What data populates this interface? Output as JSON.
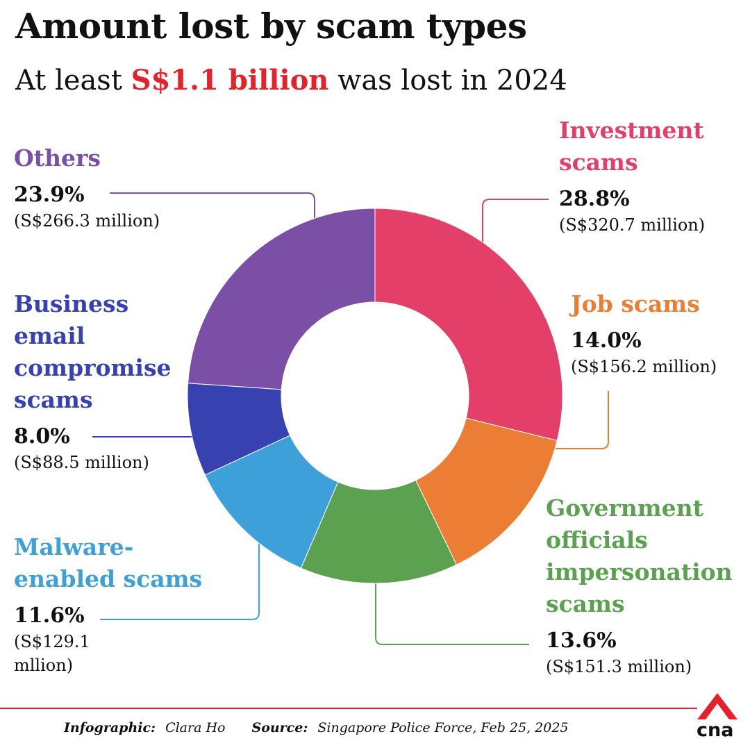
{
  "title": "Amount lost by scam types",
  "subtitle": {
    "prefix": "At least ",
    "highlight": "S$1.1 billion",
    "suffix": " was lost in 2024"
  },
  "colors": {
    "highlight": "#e4222b",
    "investment": "#e43f69",
    "job": "#ec7d35",
    "government": "#5ba150",
    "malware": "#3ea0d9",
    "business_email": "#3741b0",
    "others": "#7a4fa5"
  },
  "chart_data": {
    "type": "pie",
    "variant": "donut",
    "title": "Amount lost by scam types",
    "subtitle": "At least S$1.1 billion was lost in 2024",
    "start_angle": "12 o'clock, clockwise",
    "slices": [
      {
        "key": "investment",
        "label": "Investment scams",
        "percent": 28.8,
        "amount": "(S$320.7 million)",
        "amount_million": 320.7,
        "color": "#e43f69"
      },
      {
        "key": "job",
        "label": "Job scams",
        "percent": 14.0,
        "amount": "(S$156.2 million)",
        "amount_million": 156.2,
        "color": "#ec7d35"
      },
      {
        "key": "government",
        "label": "Government officials impersonation scams",
        "percent": 13.6,
        "amount": "(S$151.3 million)",
        "amount_million": 151.3,
        "color": "#5ba150"
      },
      {
        "key": "malware",
        "label": "Malware-enabled scams",
        "percent": 11.6,
        "amount": "(S$129.1 mllion)",
        "amount_million": 129.1,
        "color": "#3ea0d9"
      },
      {
        "key": "business_email",
        "label": "Business email compromise scams",
        "percent": 8.0,
        "amount": "(S$88.5 million)",
        "amount_million": 88.5,
        "color": "#3741b0"
      },
      {
        "key": "others",
        "label": "Others",
        "percent": 23.9,
        "amount": "(S$266.3 million)",
        "amount_million": 266.3,
        "color": "#7a4fa5"
      }
    ]
  },
  "labels": {
    "investment": {
      "cat": [
        "Investment",
        "scams"
      ],
      "pct": "28.8%",
      "amt": [
        "(S$320.7 million)"
      ]
    },
    "job": {
      "cat": [
        "Job scams"
      ],
      "pct": "14.0%",
      "amt": [
        "(S$156.2 million)"
      ]
    },
    "government": {
      "cat": [
        "Government",
        "officials",
        "impersonation",
        "scams"
      ],
      "pct": "13.6%",
      "amt": [
        "(S$151.3 million)"
      ]
    },
    "malware": {
      "cat": [
        "Malware-",
        "enabled scams"
      ],
      "pct": "11.6%",
      "amt": [
        "(S$129.1",
        "mllion)"
      ]
    },
    "business_email": {
      "cat": [
        "Business",
        "email",
        "compromise",
        "scams"
      ],
      "pct": "8.0%",
      "amt": [
        "(S$88.5 million)"
      ]
    },
    "others": {
      "cat": [
        "Others"
      ],
      "pct": "23.9%",
      "amt": [
        "(S$266.3 million)"
      ]
    }
  },
  "footer": {
    "infographic_label": "Infographic:",
    "infographic_value": "Clara Ho",
    "source_label": "Source:",
    "source_value": "Singapore Police Force, Feb 25, 2025"
  },
  "logo": {
    "text": "cna"
  }
}
